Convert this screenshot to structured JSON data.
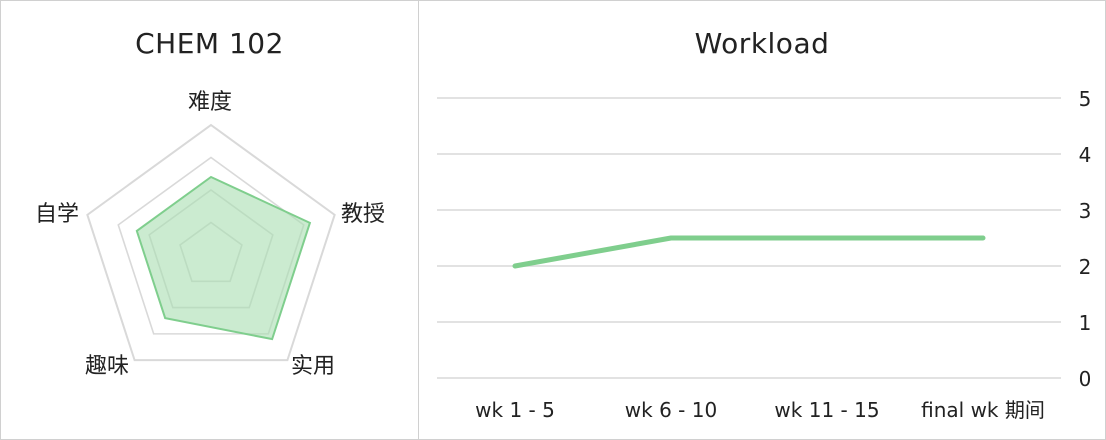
{
  "chart_data": [
    {
      "type": "radar",
      "title": "CHEM 102",
      "axes": [
        "难度",
        "教授",
        "实用",
        "趣味",
        "自学"
      ],
      "values": [
        3,
        4,
        4,
        3,
        3
      ],
      "range": [
        0,
        5
      ],
      "grid": true,
      "colors": {
        "fill": "#a8ddb0",
        "stroke": "#7fce8d",
        "grid": "#d9d9d9"
      }
    },
    {
      "type": "line",
      "title": "Workload",
      "categories": [
        "wk 1 - 5",
        "wk 6 - 10",
        "wk 11 - 15",
        "final wk 期间"
      ],
      "values": [
        2,
        2.5,
        2.5,
        2.5
      ],
      "ylim": [
        0,
        5
      ],
      "yticks": [
        "0",
        "1",
        "2",
        "3",
        "4",
        "5"
      ],
      "y_axis_position": "right",
      "grid": true,
      "colors": {
        "line": "#7fce8d",
        "grid": "#d9d9d9"
      }
    }
  ]
}
